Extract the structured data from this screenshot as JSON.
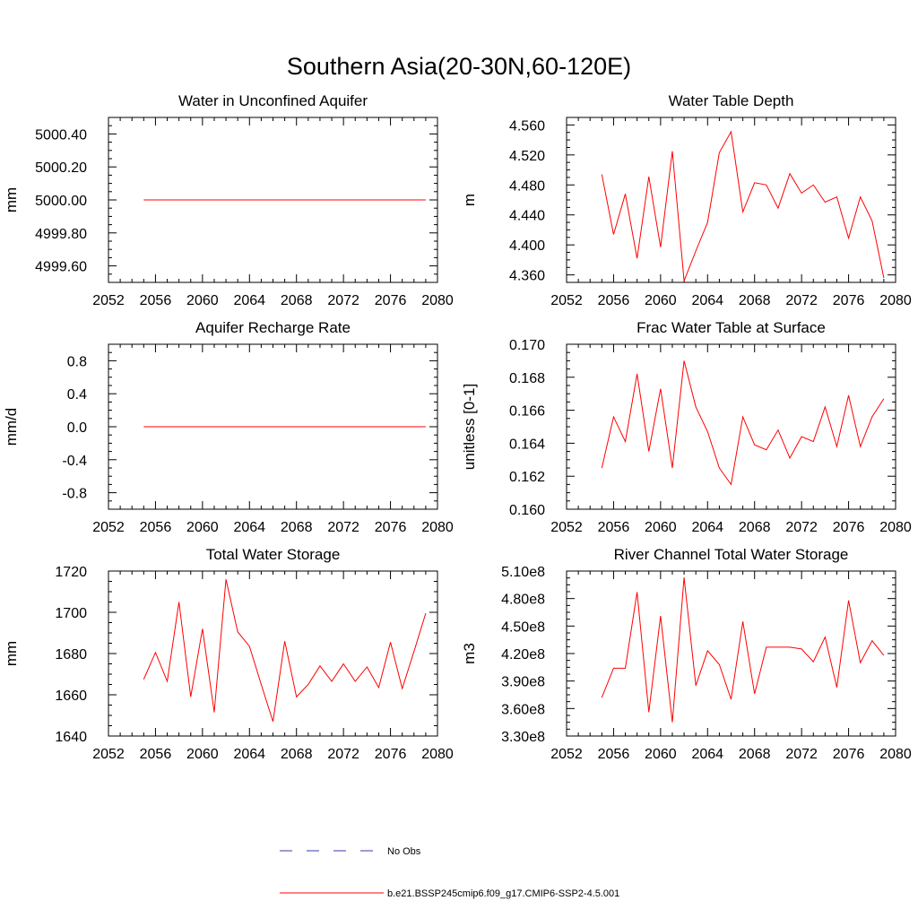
{
  "figure": {
    "title": "Southern Asia(20-30N,60-120E)"
  },
  "colors": {
    "model": "#ff0000",
    "obs": "#3a3aa8",
    "axis": "#000000"
  },
  "legend": {
    "placement": "bottom-center",
    "items": [
      {
        "label": "No Obs",
        "style": "dashed",
        "color": "#3a3aa8"
      },
      {
        "label": "b.e21.BSSP245cmip6.f09_g17.CMIP6-SSP2-4.5.001",
        "style": "solid",
        "color": "#ff0000"
      }
    ]
  },
  "chart_data": [
    {
      "type": "line",
      "title": "Water in Unconfined Aquifer",
      "ylabel": "mm",
      "xlim": [
        2052,
        2080
      ],
      "ylim": [
        4999.5,
        5000.5
      ],
      "xticks": [
        2052,
        2056,
        2060,
        2064,
        2068,
        2072,
        2076,
        2080
      ],
      "xtick_labels": [
        "2052",
        "2056",
        "2060",
        "2064",
        "2068",
        "2072",
        "2076",
        "2080"
      ],
      "yticks": [
        4999.6,
        4999.8,
        5000.0,
        5000.2,
        5000.4
      ],
      "ytick_labels": [
        "4999.60",
        "4999.80",
        "5000.00",
        "5000.20",
        "5000.40"
      ],
      "x": [
        2055,
        2056,
        2057,
        2058,
        2059,
        2060,
        2061,
        2062,
        2063,
        2064,
        2065,
        2066,
        2067,
        2068,
        2069,
        2070,
        2071,
        2072,
        2073,
        2074,
        2075,
        2076,
        2077,
        2078,
        2079
      ],
      "series": [
        {
          "values": [
            5000.0,
            5000.0,
            5000.0,
            5000.0,
            5000.0,
            5000.0,
            5000.0,
            5000.0,
            5000.0,
            5000.0,
            5000.0,
            5000.0,
            5000.0,
            5000.0,
            5000.0,
            5000.0,
            5000.0,
            5000.0,
            5000.0,
            5000.0,
            5000.0,
            5000.0,
            5000.0,
            5000.0,
            5000.0
          ]
        }
      ]
    },
    {
      "type": "line",
      "title": "Water Table Depth",
      "ylabel": "m",
      "xlim": [
        2052,
        2080
      ],
      "ylim": [
        4.35,
        4.57
      ],
      "xticks": [
        2052,
        2056,
        2060,
        2064,
        2068,
        2072,
        2076,
        2080
      ],
      "xtick_labels": [
        "2052",
        "2056",
        "2060",
        "2064",
        "2068",
        "2072",
        "2076",
        "2080"
      ],
      "yticks": [
        4.36,
        4.4,
        4.44,
        4.48,
        4.52,
        4.56
      ],
      "ytick_labels": [
        "4.360",
        "4.400",
        "4.440",
        "4.480",
        "4.520",
        "4.560"
      ],
      "x": [
        2055,
        2056,
        2057,
        2058,
        2059,
        2060,
        2061,
        2062,
        2063,
        2064,
        2065,
        2066,
        2067,
        2068,
        2069,
        2070,
        2071,
        2072,
        2073,
        2074,
        2075,
        2076,
        2077,
        2078,
        2079
      ],
      "series": [
        {
          "values": [
            4.494,
            4.414,
            4.468,
            4.382,
            4.491,
            4.397,
            4.525,
            4.352,
            4.392,
            4.43,
            4.523,
            4.551,
            4.444,
            4.483,
            4.48,
            4.449,
            4.495,
            4.469,
            4.48,
            4.457,
            4.464,
            4.409,
            4.464,
            4.432,
            4.356
          ]
        }
      ]
    },
    {
      "type": "line",
      "title": "Aquifer Recharge Rate",
      "ylabel": "mm/d",
      "xlim": [
        2052,
        2080
      ],
      "ylim": [
        -1.0,
        1.0
      ],
      "xticks": [
        2052,
        2056,
        2060,
        2064,
        2068,
        2072,
        2076,
        2080
      ],
      "xtick_labels": [
        "2052",
        "2056",
        "2060",
        "2064",
        "2068",
        "2072",
        "2076",
        "2080"
      ],
      "yticks": [
        -0.8,
        -0.4,
        0.0,
        0.4,
        0.8
      ],
      "ytick_labels": [
        "-0.8",
        "-0.4",
        "0.0",
        "0.4",
        "0.8"
      ],
      "x": [
        2055,
        2056,
        2057,
        2058,
        2059,
        2060,
        2061,
        2062,
        2063,
        2064,
        2065,
        2066,
        2067,
        2068,
        2069,
        2070,
        2071,
        2072,
        2073,
        2074,
        2075,
        2076,
        2077,
        2078,
        2079
      ],
      "series": [
        {
          "values": [
            0,
            0,
            0,
            0,
            0,
            0,
            0,
            0,
            0,
            0,
            0,
            0,
            0,
            0,
            0,
            0,
            0,
            0,
            0,
            0,
            0,
            0,
            0,
            0,
            0
          ]
        }
      ]
    },
    {
      "type": "line",
      "title": "Frac Water Table at Surface",
      "ylabel": "unitless [0-1]",
      "xlim": [
        2052,
        2080
      ],
      "ylim": [
        0.16,
        0.17
      ],
      "xticks": [
        2052,
        2056,
        2060,
        2064,
        2068,
        2072,
        2076,
        2080
      ],
      "xtick_labels": [
        "2052",
        "2056",
        "2060",
        "2064",
        "2068",
        "2072",
        "2076",
        "2080"
      ],
      "yticks": [
        0.16,
        0.162,
        0.164,
        0.166,
        0.168,
        0.17
      ],
      "ytick_labels": [
        "0.160",
        "0.162",
        "0.164",
        "0.166",
        "0.168",
        "0.170"
      ],
      "x": [
        2055,
        2056,
        2057,
        2058,
        2059,
        2060,
        2061,
        2062,
        2063,
        2064,
        2065,
        2066,
        2067,
        2068,
        2069,
        2070,
        2071,
        2072,
        2073,
        2074,
        2075,
        2076,
        2077,
        2078,
        2079
      ],
      "series": [
        {
          "values": [
            0.1625,
            0.1656,
            0.1641,
            0.1682,
            0.1635,
            0.1673,
            0.1625,
            0.169,
            0.1662,
            0.1647,
            0.1625,
            0.1615,
            0.1656,
            0.1639,
            0.1636,
            0.1648,
            0.1631,
            0.1644,
            0.1641,
            0.1662,
            0.1638,
            0.1669,
            0.1638,
            0.1656,
            0.1667
          ]
        }
      ]
    },
    {
      "type": "line",
      "title": "Total Water Storage",
      "ylabel": "mm",
      "xlim": [
        2052,
        2080
      ],
      "ylim": [
        1640,
        1720
      ],
      "xticks": [
        2052,
        2056,
        2060,
        2064,
        2068,
        2072,
        2076,
        2080
      ],
      "xtick_labels": [
        "2052",
        "2056",
        "2060",
        "2064",
        "2068",
        "2072",
        "2076",
        "2080"
      ],
      "yticks": [
        1640,
        1660,
        1680,
        1700,
        1720
      ],
      "ytick_labels": [
        "1640",
        "1660",
        "1680",
        "1700",
        "1720"
      ],
      "x": [
        2055,
        2056,
        2057,
        2058,
        2059,
        2060,
        2061,
        2062,
        2063,
        2064,
        2065,
        2066,
        2067,
        2068,
        2069,
        2070,
        2071,
        2072,
        2073,
        2074,
        2075,
        2076,
        2077,
        2078,
        2079
      ],
      "series": [
        {
          "values": [
            1667.5,
            1680.5,
            1666.5,
            1705.0,
            1659.0,
            1692.0,
            1651.5,
            1716.0,
            1690.5,
            1683.5,
            1665.0,
            1647.0,
            1686.0,
            1659.0,
            1665.0,
            1674.0,
            1666.5,
            1675.0,
            1666.5,
            1673.5,
            1663.5,
            1685.5,
            1663.0,
            1681.0,
            1699.5
          ]
        }
      ]
    },
    {
      "type": "line",
      "title": "River Channel Total Water Storage",
      "ylabel": "m3",
      "xlim": [
        2052,
        2080
      ],
      "ylim": [
        330000000,
        510000000
      ],
      "xticks": [
        2052,
        2056,
        2060,
        2064,
        2068,
        2072,
        2076,
        2080
      ],
      "xtick_labels": [
        "2052",
        "2056",
        "2060",
        "2064",
        "2068",
        "2072",
        "2076",
        "2080"
      ],
      "yticks": [
        330000000,
        360000000,
        390000000,
        420000000,
        450000000,
        480000000,
        510000000
      ],
      "ytick_labels": [
        "3.30e8",
        "3.60e8",
        "3.90e8",
        "4.20e8",
        "4.50e8",
        "4.80e8",
        "5.10e8"
      ],
      "x": [
        2055,
        2056,
        2057,
        2058,
        2059,
        2060,
        2061,
        2062,
        2063,
        2064,
        2065,
        2066,
        2067,
        2068,
        2069,
        2070,
        2071,
        2072,
        2073,
        2074,
        2075,
        2076,
        2077,
        2078,
        2079
      ],
      "series": [
        {
          "values": [
            372000000,
            404000000,
            404000000,
            487000000,
            356000000,
            461000000,
            345000000,
            503000000,
            385000000,
            423000000,
            408000000,
            370000000,
            455000000,
            376000000,
            427000000,
            427000000,
            427000000,
            425000000,
            411000000,
            438000000,
            383000000,
            478000000,
            410000000,
            434000000,
            418000000
          ]
        }
      ]
    }
  ]
}
